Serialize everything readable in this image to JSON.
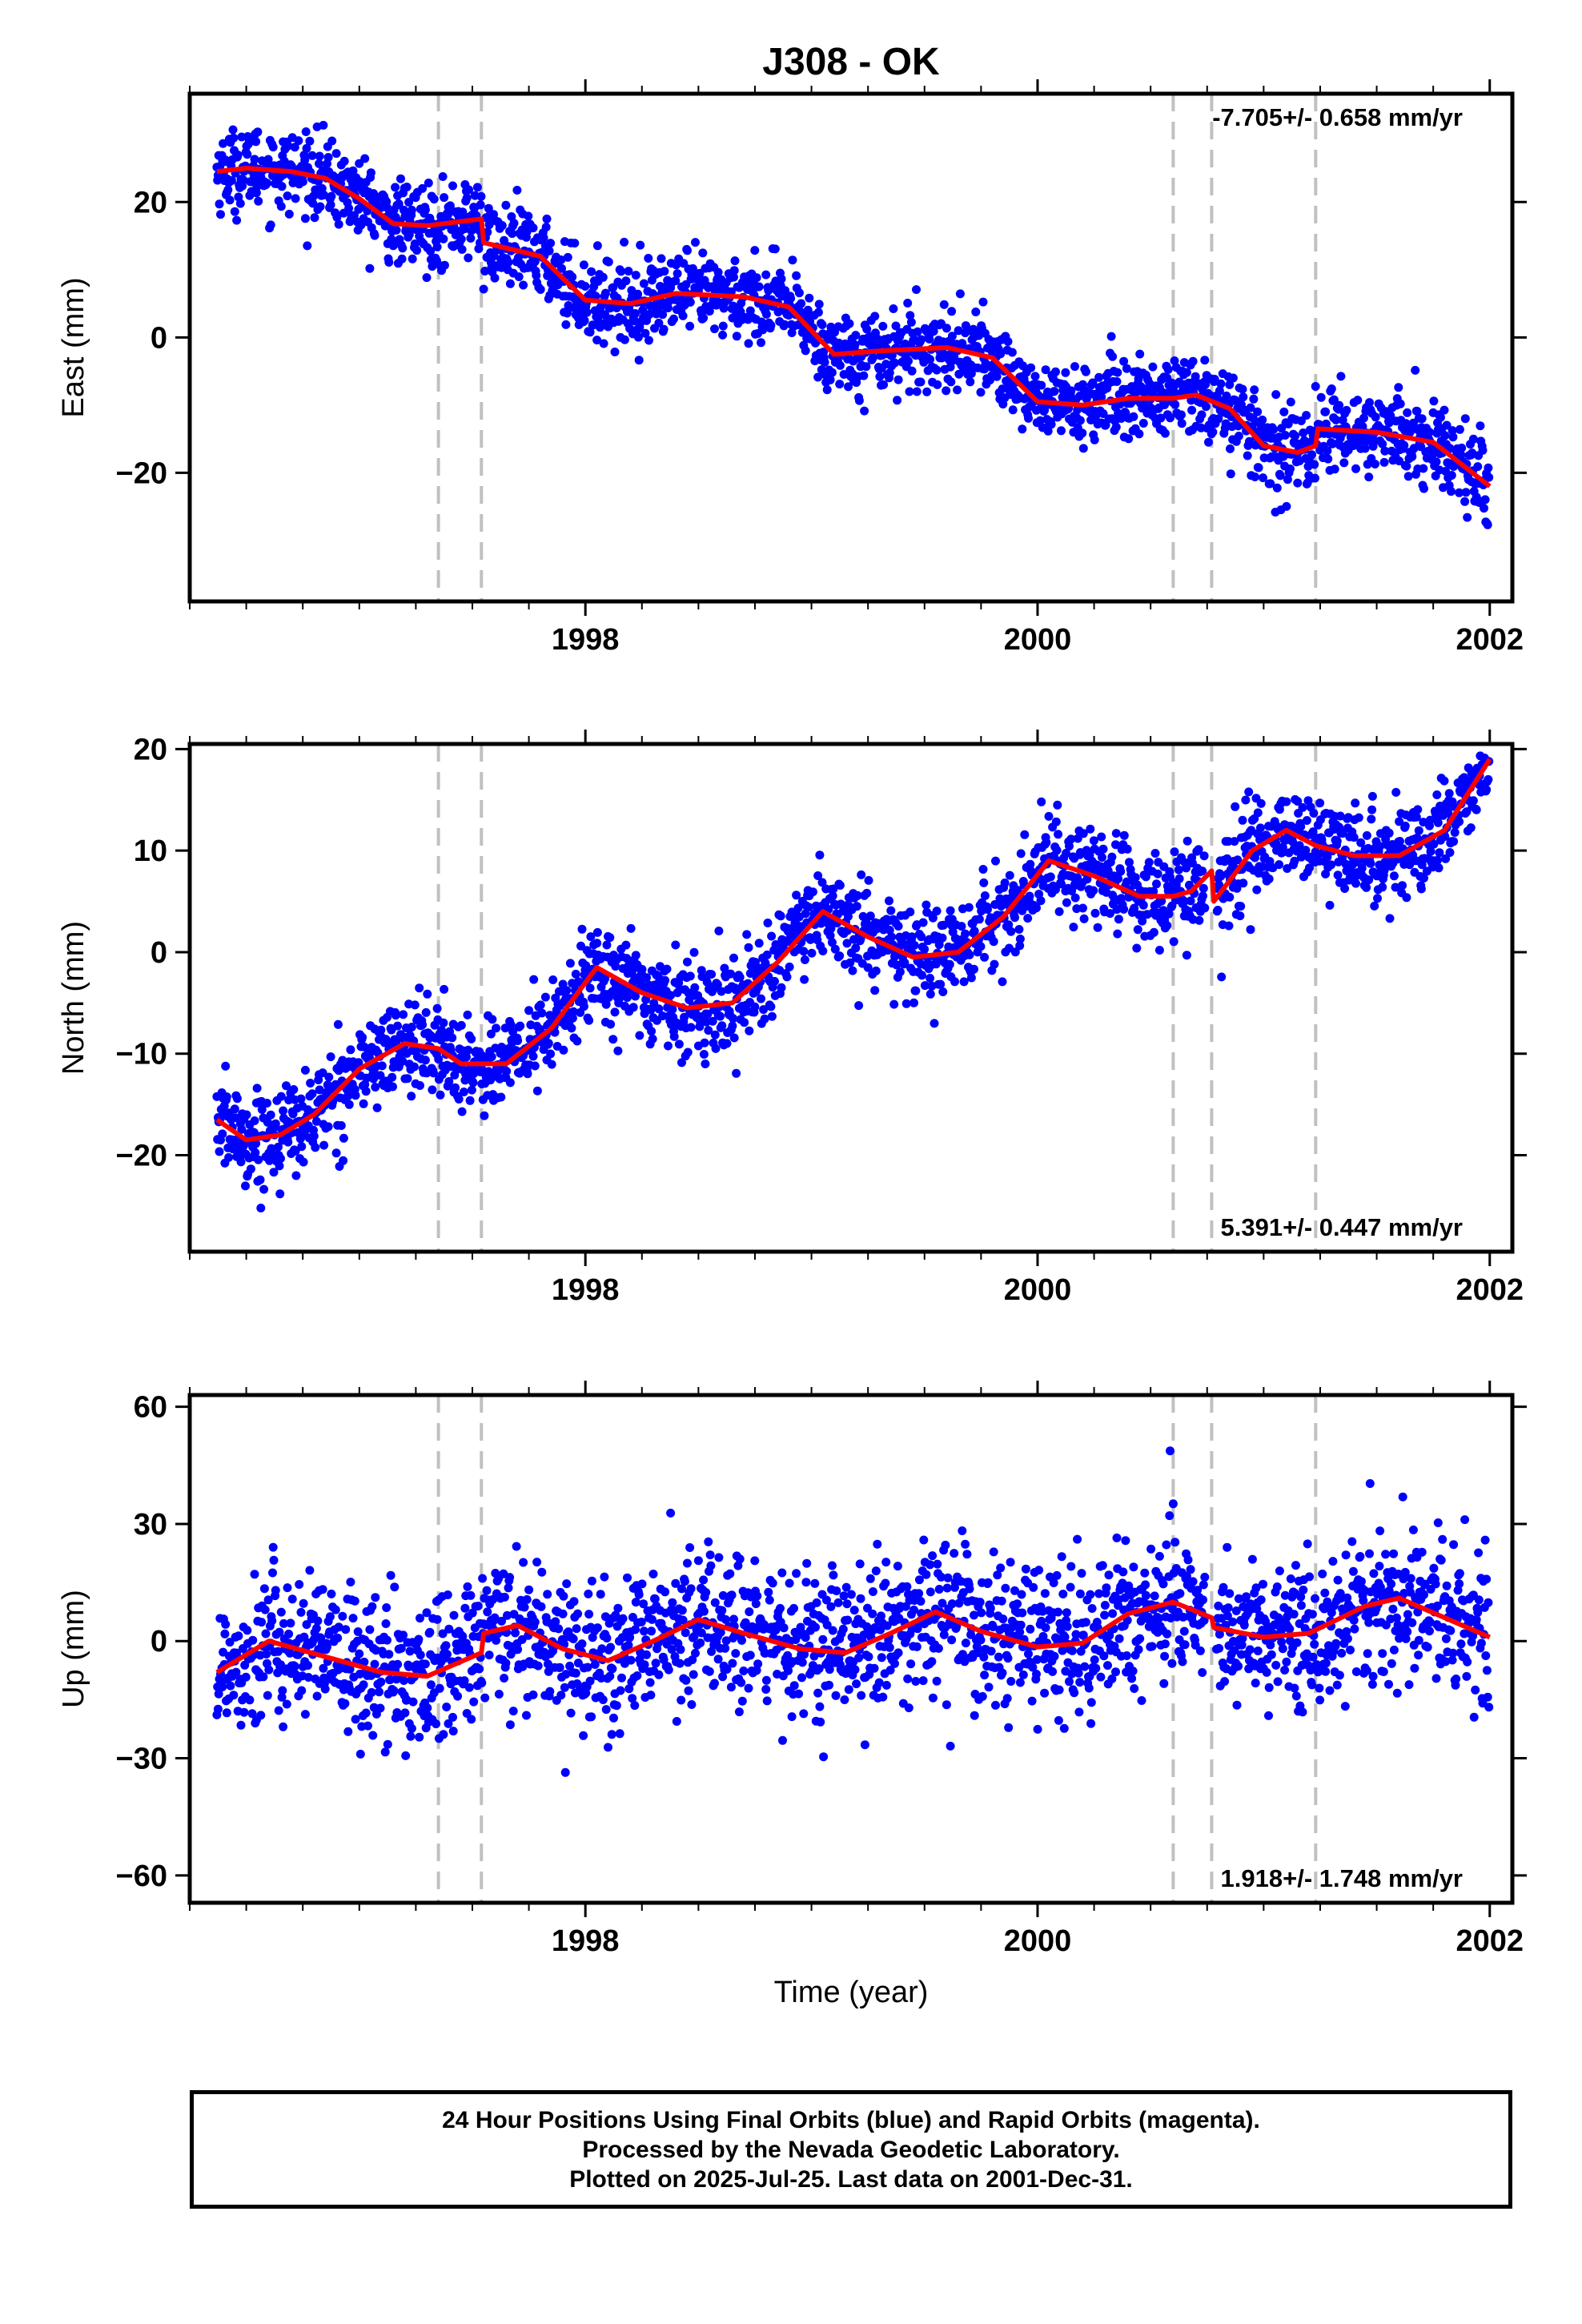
{
  "figure": {
    "title": "J308 - OK",
    "xlabel": "Time (year)"
  },
  "colors": {
    "final_orbit_points": "#0000ff",
    "model_fit": "#ff0000",
    "event_lines": "#c0c0c0",
    "frame": "#000000"
  },
  "footer": {
    "line1": "24 Hour Positions Using Final Orbits (blue) and Rapid Orbits (magenta).",
    "line2": "Processed by the Nevada Geodetic Laboratory.",
    "line3": "Plotted on 2025-Jul-25. Last data on 2001-Dec-31."
  },
  "chart_data": [
    {
      "type": "scatter",
      "name": "east",
      "ylabel": "East (mm)",
      "xlim": [
        1996.25,
        2002.1
      ],
      "ylim": [
        -39,
        36
      ],
      "x_ticks": [
        1998,
        2000,
        2002
      ],
      "y_ticks": [
        -20,
        0,
        20
      ],
      "rate_text": "-7.705+/- 0.658 mm/yr",
      "rate_position": "top-right",
      "event_lines_x": [
        1997.35,
        1997.54,
        2000.6,
        2000.77,
        2001.23
      ],
      "model_fit": [
        [
          1996.37,
          24.5
        ],
        [
          1996.5,
          25.0
        ],
        [
          1996.7,
          24.5
        ],
        [
          1996.85,
          23.5
        ],
        [
          1997.0,
          20.5
        ],
        [
          1997.15,
          16.8
        ],
        [
          1997.3,
          16.5
        ],
        [
          1997.54,
          17.5
        ],
        [
          1997.55,
          14.0
        ],
        [
          1997.8,
          12.0
        ],
        [
          1998.0,
          5.5
        ],
        [
          1998.2,
          5.0
        ],
        [
          1998.4,
          6.5
        ],
        [
          1998.7,
          6.0
        ],
        [
          1998.9,
          4.5
        ],
        [
          1999.1,
          -2.5
        ],
        [
          1999.3,
          -2.0
        ],
        [
          1999.6,
          -1.5
        ],
        [
          1999.8,
          -3.0
        ],
        [
          2000.0,
          -9.5
        ],
        [
          2000.2,
          -10.0
        ],
        [
          2000.4,
          -9.0
        ],
        [
          2000.6,
          -9.0
        ],
        [
          2000.7,
          -8.5
        ],
        [
          2000.85,
          -10.5
        ],
        [
          2001.0,
          -16.0
        ],
        [
          2001.15,
          -17.0
        ],
        [
          2001.23,
          -16.0
        ],
        [
          2001.24,
          -13.5
        ],
        [
          2001.5,
          -14.0
        ],
        [
          2001.75,
          -15.5
        ],
        [
          2002.0,
          -22.0
        ]
      ]
    },
    {
      "type": "scatter",
      "name": "north",
      "ylabel": "North (mm)",
      "xlim": [
        1996.25,
        2002.1
      ],
      "ylim": [
        -29.5,
        20.5
      ],
      "x_ticks": [
        1998,
        2000,
        2002
      ],
      "y_ticks": [
        -20,
        -10,
        0,
        10,
        20
      ],
      "rate_text": "5.391+/- 0.447 mm/yr",
      "rate_position": "bottom-right",
      "event_lines_x": [
        1997.35,
        1997.54,
        2000.6,
        2000.77,
        2001.23
      ],
      "model_fit": [
        [
          1996.37,
          -16.5
        ],
        [
          1996.5,
          -18.5
        ],
        [
          1996.65,
          -18.0
        ],
        [
          1996.8,
          -16.0
        ],
        [
          1997.0,
          -11.5
        ],
        [
          1997.2,
          -9.0
        ],
        [
          1997.35,
          -9.5
        ],
        [
          1997.45,
          -11.0
        ],
        [
          1997.65,
          -11.0
        ],
        [
          1997.85,
          -7.5
        ],
        [
          1998.05,
          -1.5
        ],
        [
          1998.25,
          -4.0
        ],
        [
          1998.45,
          -5.5
        ],
        [
          1998.65,
          -5.0
        ],
        [
          1998.85,
          -1.0
        ],
        [
          1999.05,
          4.0
        ],
        [
          1999.25,
          1.5
        ],
        [
          1999.45,
          -0.5
        ],
        [
          1999.65,
          0.0
        ],
        [
          1999.85,
          3.5
        ],
        [
          2000.05,
          9.0
        ],
        [
          2000.25,
          7.5
        ],
        [
          2000.45,
          5.5
        ],
        [
          2000.6,
          5.5
        ],
        [
          2000.68,
          6.0
        ],
        [
          2000.77,
          8.0
        ],
        [
          2000.78,
          5.0
        ],
        [
          2000.95,
          10.0
        ],
        [
          2001.1,
          12.0
        ],
        [
          2001.23,
          10.5
        ],
        [
          2001.4,
          9.5
        ],
        [
          2001.6,
          9.5
        ],
        [
          2001.8,
          12.0
        ],
        [
          2002.0,
          19.0
        ]
      ]
    },
    {
      "type": "scatter",
      "name": "up",
      "ylabel": "Up (mm)",
      "xlim": [
        1996.25,
        2002.1
      ],
      "ylim": [
        -67,
        63
      ],
      "x_ticks": [
        1998,
        2000,
        2002
      ],
      "y_ticks": [
        -60,
        -30,
        0,
        30,
        60
      ],
      "rate_text": "1.918+/- 1.748 mm/yr",
      "rate_position": "bottom-right",
      "event_lines_x": [
        1997.35,
        1997.54,
        2000.6,
        2000.77,
        2001.23
      ],
      "model_fit": [
        [
          1996.37,
          -8.0
        ],
        [
          1996.6,
          0.0
        ],
        [
          1996.85,
          -4.0
        ],
        [
          1997.1,
          -8.0
        ],
        [
          1997.3,
          -9.0
        ],
        [
          1997.54,
          -3.0
        ],
        [
          1997.55,
          2.0
        ],
        [
          1997.7,
          4.0
        ],
        [
          1997.9,
          -2.0
        ],
        [
          1998.1,
          -5.0
        ],
        [
          1998.3,
          0.0
        ],
        [
          1998.5,
          5.5
        ],
        [
          1998.7,
          2.0
        ],
        [
          1998.95,
          -2.0
        ],
        [
          1999.15,
          -3.0
        ],
        [
          1999.35,
          2.0
        ],
        [
          1999.55,
          7.5
        ],
        [
          1999.75,
          2.5
        ],
        [
          2000.0,
          -1.5
        ],
        [
          2000.2,
          -0.5
        ],
        [
          2000.4,
          7.0
        ],
        [
          2000.6,
          10.0
        ],
        [
          2000.77,
          6.0
        ],
        [
          2000.78,
          3.5
        ],
        [
          2001.0,
          1.0
        ],
        [
          2001.2,
          2.0
        ],
        [
          2001.45,
          9.0
        ],
        [
          2001.6,
          11.0
        ],
        [
          2001.8,
          6.0
        ],
        [
          2002.0,
          1.0
        ]
      ]
    }
  ]
}
